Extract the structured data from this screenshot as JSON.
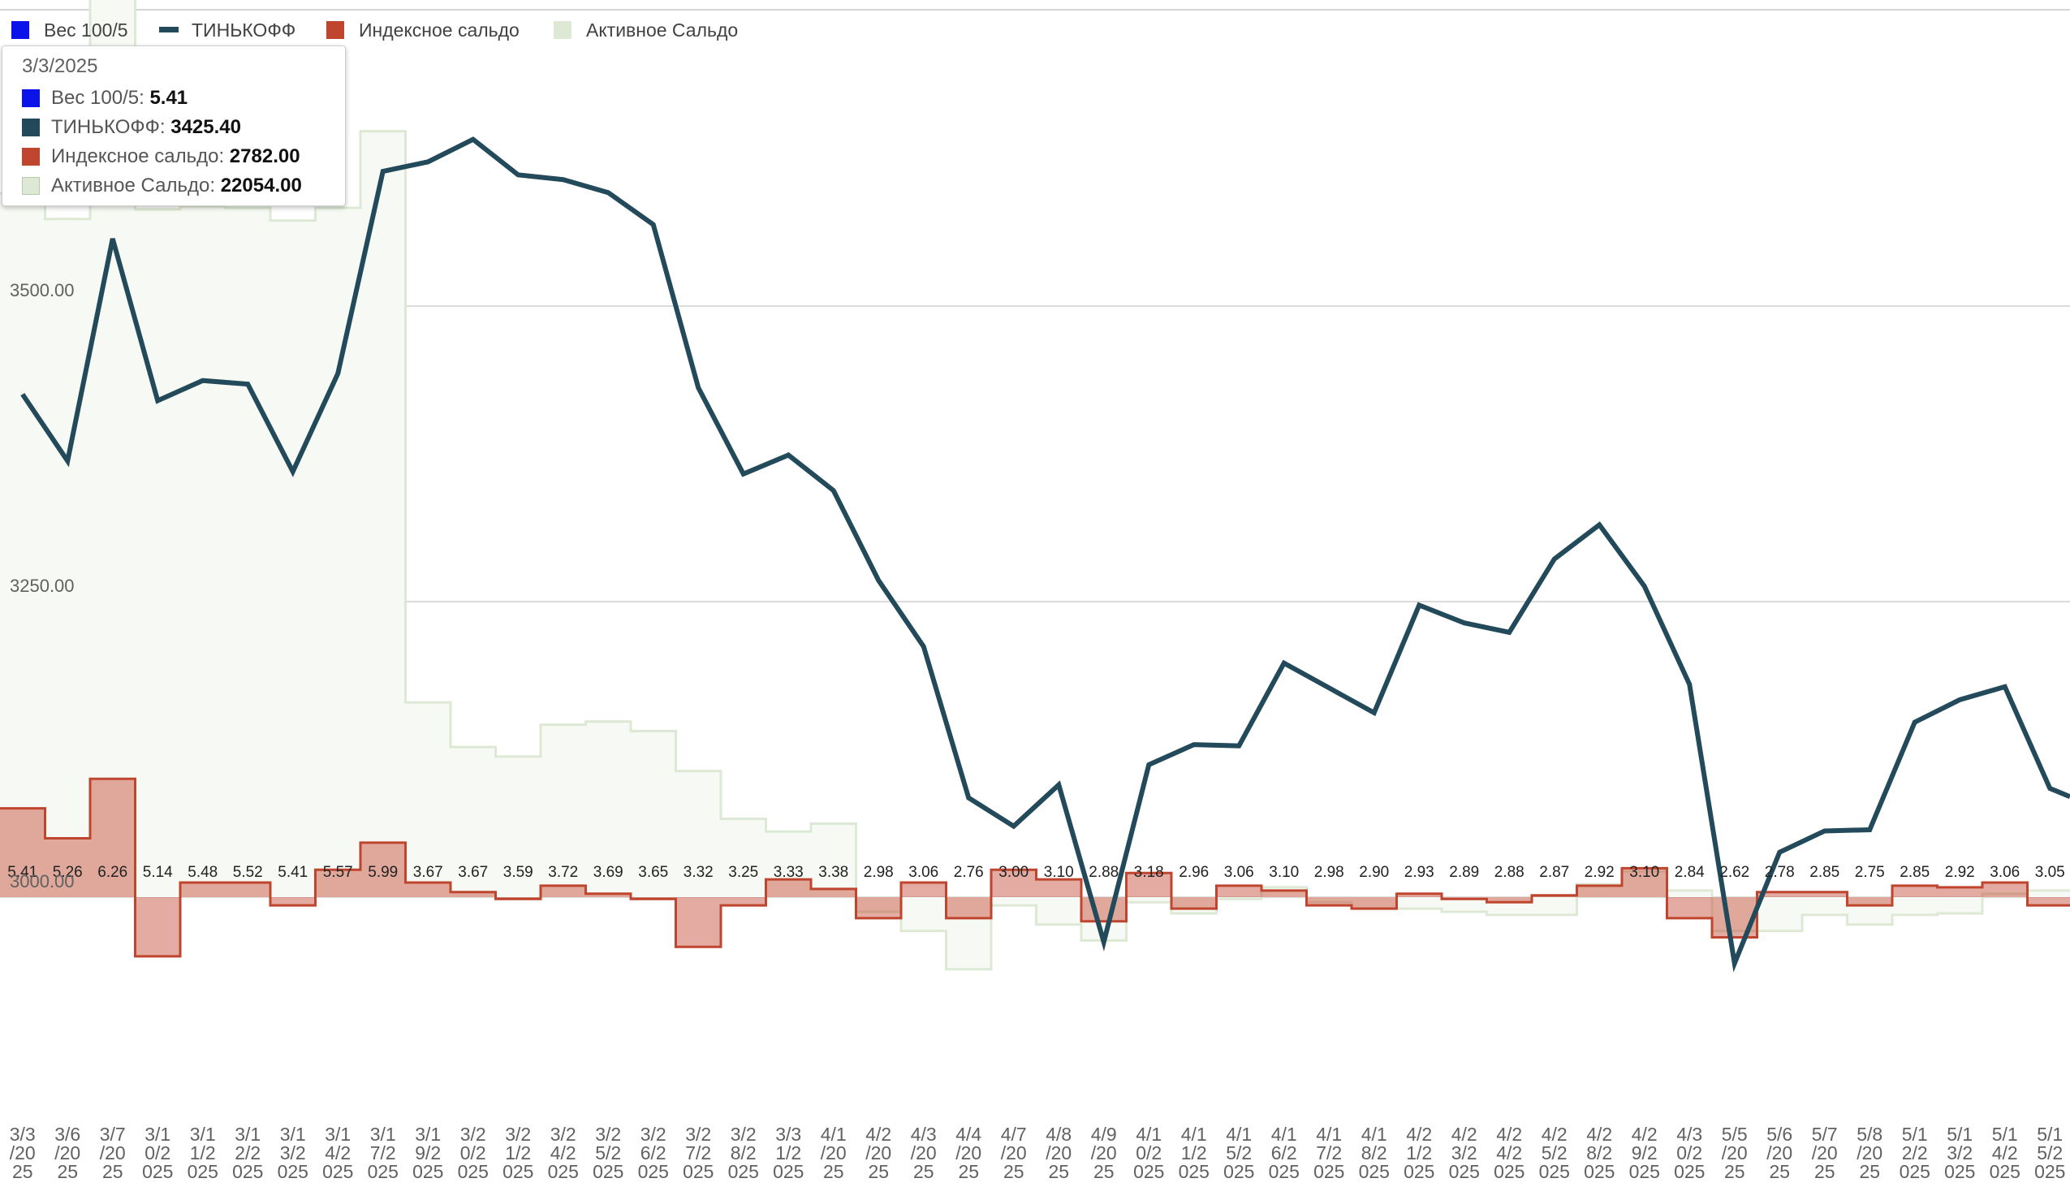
{
  "chart_data": {
    "type": "combo",
    "y_ticks": [
      "3000.00",
      "3250.00",
      "3500.00"
    ],
    "ylim": [
      2834,
      3750
    ],
    "categories": [
      "3/3/2025",
      "3/6/2025",
      "3/7/2025",
      "3/10/2025",
      "3/11/2025",
      "3/12/2025",
      "3/13/2025",
      "3/14/2025",
      "3/17/2025",
      "3/19/2025",
      "3/20/2025",
      "3/21/2025",
      "3/24/2025",
      "3/25/2025",
      "3/26/2025",
      "3/27/2025",
      "3/28/2025",
      "3/31/2025",
      "4/1/2025",
      "4/2/2025",
      "4/3/2025",
      "4/4/2025",
      "4/7/2025",
      "4/8/2025",
      "4/9/2025",
      "4/10/2025",
      "4/11/2025",
      "4/15/2025",
      "4/16/2025",
      "4/17/2025",
      "4/18/2025",
      "4/21/2025",
      "4/23/2025",
      "4/24/2025",
      "4/25/2025",
      "4/28/2025",
      "4/29/2025",
      "4/30/2025",
      "5/5/2025",
      "5/6/2025",
      "5/7/2025",
      "5/8/2025",
      "5/12/2025",
      "5/13/2025",
      "5/14/2025",
      "5/15/2025"
    ],
    "x_labels": [
      [
        "3/3",
        "/20",
        "25"
      ],
      [
        "3/6",
        "/20",
        "25"
      ],
      [
        "3/7",
        "/20",
        "25"
      ],
      [
        "3/1",
        "0/2",
        "025"
      ],
      [
        "3/1",
        "1/2",
        "025"
      ],
      [
        "3/1",
        "2/2",
        "025"
      ],
      [
        "3/1",
        "3/2",
        "025"
      ],
      [
        "3/1",
        "4/2",
        "025"
      ],
      [
        "3/1",
        "7/2",
        "025"
      ],
      [
        "3/1",
        "9/2",
        "025"
      ],
      [
        "3/2",
        "0/2",
        "025"
      ],
      [
        "3/2",
        "1/2",
        "025"
      ],
      [
        "3/2",
        "4/2",
        "025"
      ],
      [
        "3/2",
        "5/2",
        "025"
      ],
      [
        "3/2",
        "6/2",
        "025"
      ],
      [
        "3/2",
        "7/2",
        "025"
      ],
      [
        "3/2",
        "8/2",
        "025"
      ],
      [
        "3/3",
        "1/2",
        "025"
      ],
      [
        "4/1",
        "/20",
        "25"
      ],
      [
        "4/2",
        "/20",
        "25"
      ],
      [
        "4/3",
        "/20",
        "25"
      ],
      [
        "4/4",
        "/20",
        "25"
      ],
      [
        "4/7",
        "/20",
        "25"
      ],
      [
        "4/8",
        "/20",
        "25"
      ],
      [
        "4/9",
        "/20",
        "25"
      ],
      [
        "4/1",
        "0/2",
        "025"
      ],
      [
        "4/1",
        "1/2",
        "025"
      ],
      [
        "4/1",
        "5/2",
        "025"
      ],
      [
        "4/1",
        "6/2",
        "025"
      ],
      [
        "4/1",
        "7/2",
        "025"
      ],
      [
        "4/1",
        "8/2",
        "025"
      ],
      [
        "4/2",
        "1/2",
        "025"
      ],
      [
        "4/2",
        "3/2",
        "025"
      ],
      [
        "4/2",
        "4/2",
        "025"
      ],
      [
        "4/2",
        "5/2",
        "025"
      ],
      [
        "4/2",
        "8/2",
        "025"
      ],
      [
        "4/2",
        "9/2",
        "025"
      ],
      [
        "4/3",
        "0/2",
        "025"
      ],
      [
        "5/5",
        "/20",
        "25"
      ],
      [
        "5/6",
        "/20",
        "25"
      ],
      [
        "5/7",
        "/20",
        "25"
      ],
      [
        "5/8",
        "/20",
        "25"
      ],
      [
        "5/1",
        "2/2",
        "025"
      ],
      [
        "5/1",
        "3/2",
        "025"
      ],
      [
        "5/1",
        "4/2",
        "025"
      ],
      [
        "5/1",
        "5/2",
        "025"
      ]
    ],
    "weight_labels": [
      "5.41",
      "5.26",
      "6.26",
      "5.14",
      "5.48",
      "5.52",
      "5.41",
      "5.57",
      "5.99",
      "3.67",
      "3.67",
      "3.59",
      "3.72",
      "3.69",
      "3.65",
      "3.32",
      "3.25",
      "3.33",
      "3.38",
      "2.98",
      "3.06",
      "2.76",
      "3.00",
      "3.10",
      "2.88",
      "3.18",
      "2.96",
      "3.06",
      "3.10",
      "2.98",
      "2.90",
      "2.93",
      "2.89",
      "2.88",
      "2.87",
      "2.92",
      "3.10",
      "2.84",
      "2.62",
      "2.78",
      "2.85",
      "2.75",
      "2.85",
      "2.92",
      "3.06",
      "3.05"
    ],
    "series": [
      {
        "name": "Вес 100/5",
        "color": "#0a14e8",
        "kind": "labels"
      },
      {
        "name": "ТИНЬКОФФ",
        "color": "#234a5a",
        "kind": "line",
        "values": [
          3425.4,
          3369,
          3557,
          3420,
          3437,
          3434,
          3360,
          3443,
          3614,
          3622,
          3641,
          3611,
          3607,
          3596,
          3569,
          3431,
          3358,
          3374,
          3344,
          3268,
          3212,
          3084,
          3060,
          3095,
          2962,
          3112,
          3129,
          3128,
          3198,
          3177,
          3156,
          3247,
          3232,
          3224,
          3286,
          3315,
          3263,
          3180,
          2944,
          3038,
          3056,
          3057,
          3148,
          3167,
          3178,
          3092
        ]
      },
      {
        "name": "Индексное сальдо",
        "color": "#c0452f",
        "kind": "step",
        "values": [
          2782,
          1845,
          3708,
          -1855,
          458,
          458,
          -258,
          858,
          1708,
          458,
          158,
          -58,
          358,
          108,
          -58,
          -1558,
          -258,
          558,
          258,
          -658,
          458,
          -658,
          858,
          558,
          -758,
          758,
          -358,
          358,
          208,
          -258,
          -358,
          108,
          -58,
          -158,
          58,
          358,
          908,
          -658,
          -1258,
          158,
          158,
          -258,
          358,
          308,
          458,
          -258
        ]
      },
      {
        "name": "Активное Сальдо",
        "color": "#dde9d4",
        "kind": "step-area",
        "values": [
          22054,
          21254,
          31500,
          21554,
          21654,
          21604,
          21204,
          21604,
          24004,
          6104,
          4704,
          4404,
          5404,
          5504,
          5204,
          3954,
          2454,
          2054,
          2304,
          -458,
          -1058,
          -2258,
          -258,
          -858,
          -1358,
          -158,
          -508,
          -58,
          308,
          -158,
          -358,
          -358,
          -458,
          -558,
          -558,
          408,
          808,
          208,
          -1058,
          -1058,
          -558,
          -858,
          -558,
          -508,
          108,
          208
        ]
      }
    ],
    "legend_position": "top-left",
    "grid": true,
    "tooltip": {
      "date": "3/3/2025",
      "rows": [
        {
          "label": "Вес 100/5",
          "value": "5.41",
          "color": "#0a14e8"
        },
        {
          "label": "ТИНЬКОФФ",
          "value": "3425.40",
          "color": "#234a5a"
        },
        {
          "label": "Индексное сальдо",
          "value": "2782.00",
          "color": "#c0452f"
        },
        {
          "label": "Активное Сальдо",
          "value": "22054.00",
          "color": "#dde9d4"
        }
      ]
    }
  }
}
